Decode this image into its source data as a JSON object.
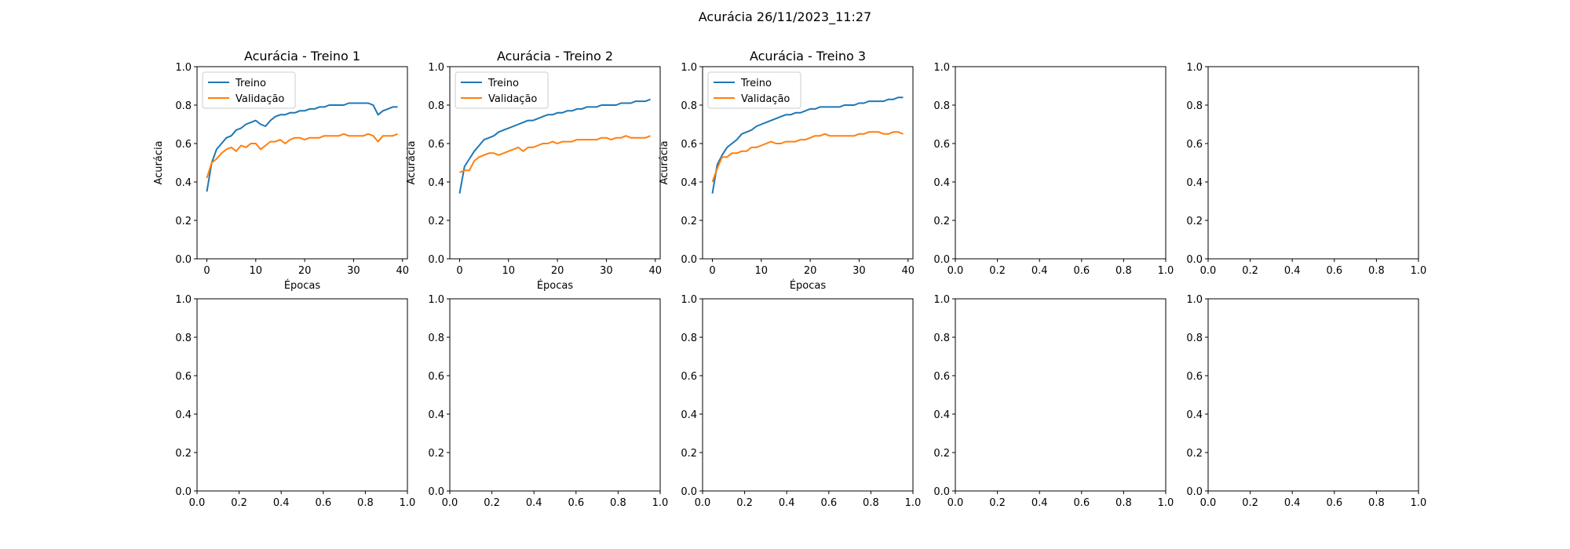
{
  "figure": {
    "suptitle": "Acurácia 26/11/2023_11:27"
  },
  "colors": {
    "treino": "#1f77b4",
    "validacao": "#ff7f0e",
    "axis": "#000000",
    "background": "#ffffff"
  },
  "chart_data": [
    {
      "type": "line",
      "title": "Acurácia - Treino 1",
      "xlabel": "Épocas",
      "ylabel": "Acurácia",
      "xlim": [
        -2,
        41
      ],
      "ylim": [
        0.0,
        1.0
      ],
      "xticks": [
        0,
        10,
        20,
        30,
        40
      ],
      "yticks": [
        0.0,
        0.2,
        0.4,
        0.6,
        0.8,
        1.0
      ],
      "grid": false,
      "legend": "upper-left",
      "x": [
        0,
        1,
        2,
        3,
        4,
        5,
        6,
        7,
        8,
        9,
        10,
        11,
        12,
        13,
        14,
        15,
        16,
        17,
        18,
        19,
        20,
        21,
        22,
        23,
        24,
        25,
        26,
        27,
        28,
        29,
        30,
        31,
        32,
        33,
        34,
        35,
        36,
        37,
        38,
        39
      ],
      "series": [
        {
          "name": "Treino",
          "color": "#1f77b4",
          "values": [
            0.35,
            0.5,
            0.57,
            0.6,
            0.63,
            0.64,
            0.67,
            0.68,
            0.7,
            0.71,
            0.72,
            0.7,
            0.69,
            0.72,
            0.74,
            0.75,
            0.75,
            0.76,
            0.76,
            0.77,
            0.77,
            0.78,
            0.78,
            0.79,
            0.79,
            0.8,
            0.8,
            0.8,
            0.8,
            0.81,
            0.81,
            0.81,
            0.81,
            0.81,
            0.8,
            0.75,
            0.77,
            0.78,
            0.79,
            0.79
          ]
        },
        {
          "name": "Validação",
          "color": "#ff7f0e",
          "values": [
            0.42,
            0.5,
            0.52,
            0.55,
            0.57,
            0.58,
            0.56,
            0.59,
            0.58,
            0.6,
            0.6,
            0.57,
            0.59,
            0.61,
            0.61,
            0.62,
            0.6,
            0.62,
            0.63,
            0.63,
            0.62,
            0.63,
            0.63,
            0.63,
            0.64,
            0.64,
            0.64,
            0.64,
            0.65,
            0.64,
            0.64,
            0.64,
            0.64,
            0.65,
            0.64,
            0.61,
            0.64,
            0.64,
            0.64,
            0.65
          ]
        }
      ]
    },
    {
      "type": "line",
      "title": "Acurácia - Treino 2",
      "xlabel": "Épocas",
      "ylabel": "Acurácia",
      "xlim": [
        -2,
        41
      ],
      "ylim": [
        0.0,
        1.0
      ],
      "xticks": [
        0,
        10,
        20,
        30,
        40
      ],
      "yticks": [
        0.0,
        0.2,
        0.4,
        0.6,
        0.8,
        1.0
      ],
      "grid": false,
      "legend": "upper-left",
      "x": [
        0,
        1,
        2,
        3,
        4,
        5,
        6,
        7,
        8,
        9,
        10,
        11,
        12,
        13,
        14,
        15,
        16,
        17,
        18,
        19,
        20,
        21,
        22,
        23,
        24,
        25,
        26,
        27,
        28,
        29,
        30,
        31,
        32,
        33,
        34,
        35,
        36,
        37,
        38,
        39
      ],
      "series": [
        {
          "name": "Treino",
          "color": "#1f77b4",
          "values": [
            0.34,
            0.48,
            0.52,
            0.56,
            0.59,
            0.62,
            0.63,
            0.64,
            0.66,
            0.67,
            0.68,
            0.69,
            0.7,
            0.71,
            0.72,
            0.72,
            0.73,
            0.74,
            0.75,
            0.75,
            0.76,
            0.76,
            0.77,
            0.77,
            0.78,
            0.78,
            0.79,
            0.79,
            0.79,
            0.8,
            0.8,
            0.8,
            0.8,
            0.81,
            0.81,
            0.81,
            0.82,
            0.82,
            0.82,
            0.83
          ]
        },
        {
          "name": "Validação",
          "color": "#ff7f0e",
          "values": [
            0.45,
            0.46,
            0.46,
            0.51,
            0.53,
            0.54,
            0.55,
            0.55,
            0.54,
            0.55,
            0.56,
            0.57,
            0.58,
            0.56,
            0.58,
            0.58,
            0.59,
            0.6,
            0.6,
            0.61,
            0.6,
            0.61,
            0.61,
            0.61,
            0.62,
            0.62,
            0.62,
            0.62,
            0.62,
            0.63,
            0.63,
            0.62,
            0.63,
            0.63,
            0.64,
            0.63,
            0.63,
            0.63,
            0.63,
            0.64
          ]
        }
      ]
    },
    {
      "type": "line",
      "title": "Acurácia - Treino 3",
      "xlabel": "Épocas",
      "ylabel": "Acurácia",
      "xlim": [
        -2,
        41
      ],
      "ylim": [
        0.0,
        1.0
      ],
      "xticks": [
        0,
        10,
        20,
        30,
        40
      ],
      "yticks": [
        0.0,
        0.2,
        0.4,
        0.6,
        0.8,
        1.0
      ],
      "grid": false,
      "legend": "upper-left",
      "x": [
        0,
        1,
        2,
        3,
        4,
        5,
        6,
        7,
        8,
        9,
        10,
        11,
        12,
        13,
        14,
        15,
        16,
        17,
        18,
        19,
        20,
        21,
        22,
        23,
        24,
        25,
        26,
        27,
        28,
        29,
        30,
        31,
        32,
        33,
        34,
        35,
        36,
        37,
        38,
        39
      ],
      "series": [
        {
          "name": "Treino",
          "color": "#1f77b4",
          "values": [
            0.34,
            0.49,
            0.54,
            0.58,
            0.6,
            0.62,
            0.65,
            0.66,
            0.67,
            0.69,
            0.7,
            0.71,
            0.72,
            0.73,
            0.74,
            0.75,
            0.75,
            0.76,
            0.76,
            0.77,
            0.78,
            0.78,
            0.79,
            0.79,
            0.79,
            0.79,
            0.79,
            0.8,
            0.8,
            0.8,
            0.81,
            0.81,
            0.82,
            0.82,
            0.82,
            0.82,
            0.83,
            0.83,
            0.84,
            0.84
          ]
        },
        {
          "name": "Validação",
          "color": "#ff7f0e",
          "values": [
            0.4,
            0.47,
            0.53,
            0.53,
            0.55,
            0.55,
            0.56,
            0.56,
            0.58,
            0.58,
            0.59,
            0.6,
            0.61,
            0.6,
            0.6,
            0.61,
            0.61,
            0.61,
            0.62,
            0.62,
            0.63,
            0.64,
            0.64,
            0.65,
            0.64,
            0.64,
            0.64,
            0.64,
            0.64,
            0.64,
            0.65,
            0.65,
            0.66,
            0.66,
            0.66,
            0.65,
            0.65,
            0.66,
            0.66,
            0.65
          ]
        }
      ]
    },
    {
      "type": "line",
      "xlim": [
        0.0,
        1.0
      ],
      "ylim": [
        0.0,
        1.0
      ],
      "xticks": [
        0.0,
        0.2,
        0.4,
        0.6,
        0.8,
        1.0
      ],
      "yticks": [
        0.0,
        0.2,
        0.4,
        0.6,
        0.8,
        1.0
      ],
      "series": []
    },
    {
      "type": "line",
      "xlim": [
        0.0,
        1.0
      ],
      "ylim": [
        0.0,
        1.0
      ],
      "xticks": [
        0.0,
        0.2,
        0.4,
        0.6,
        0.8,
        1.0
      ],
      "yticks": [
        0.0,
        0.2,
        0.4,
        0.6,
        0.8,
        1.0
      ],
      "series": []
    },
    {
      "type": "line",
      "xlim": [
        0.0,
        1.0
      ],
      "ylim": [
        0.0,
        1.0
      ],
      "xticks": [
        0.0,
        0.2,
        0.4,
        0.6,
        0.8,
        1.0
      ],
      "yticks": [
        0.0,
        0.2,
        0.4,
        0.6,
        0.8,
        1.0
      ],
      "series": []
    },
    {
      "type": "line",
      "xlim": [
        0.0,
        1.0
      ],
      "ylim": [
        0.0,
        1.0
      ],
      "xticks": [
        0.0,
        0.2,
        0.4,
        0.6,
        0.8,
        1.0
      ],
      "yticks": [
        0.0,
        0.2,
        0.4,
        0.6,
        0.8,
        1.0
      ],
      "series": []
    },
    {
      "type": "line",
      "xlim": [
        0.0,
        1.0
      ],
      "ylim": [
        0.0,
        1.0
      ],
      "xticks": [
        0.0,
        0.2,
        0.4,
        0.6,
        0.8,
        1.0
      ],
      "yticks": [
        0.0,
        0.2,
        0.4,
        0.6,
        0.8,
        1.0
      ],
      "series": []
    },
    {
      "type": "line",
      "xlim": [
        0.0,
        1.0
      ],
      "ylim": [
        0.0,
        1.0
      ],
      "xticks": [
        0.0,
        0.2,
        0.4,
        0.6,
        0.8,
        1.0
      ],
      "yticks": [
        0.0,
        0.2,
        0.4,
        0.6,
        0.8,
        1.0
      ],
      "series": []
    },
    {
      "type": "line",
      "xlim": [
        0.0,
        1.0
      ],
      "ylim": [
        0.0,
        1.0
      ],
      "xticks": [
        0.0,
        0.2,
        0.4,
        0.6,
        0.8,
        1.0
      ],
      "yticks": [
        0.0,
        0.2,
        0.4,
        0.6,
        0.8,
        1.0
      ],
      "series": []
    }
  ]
}
